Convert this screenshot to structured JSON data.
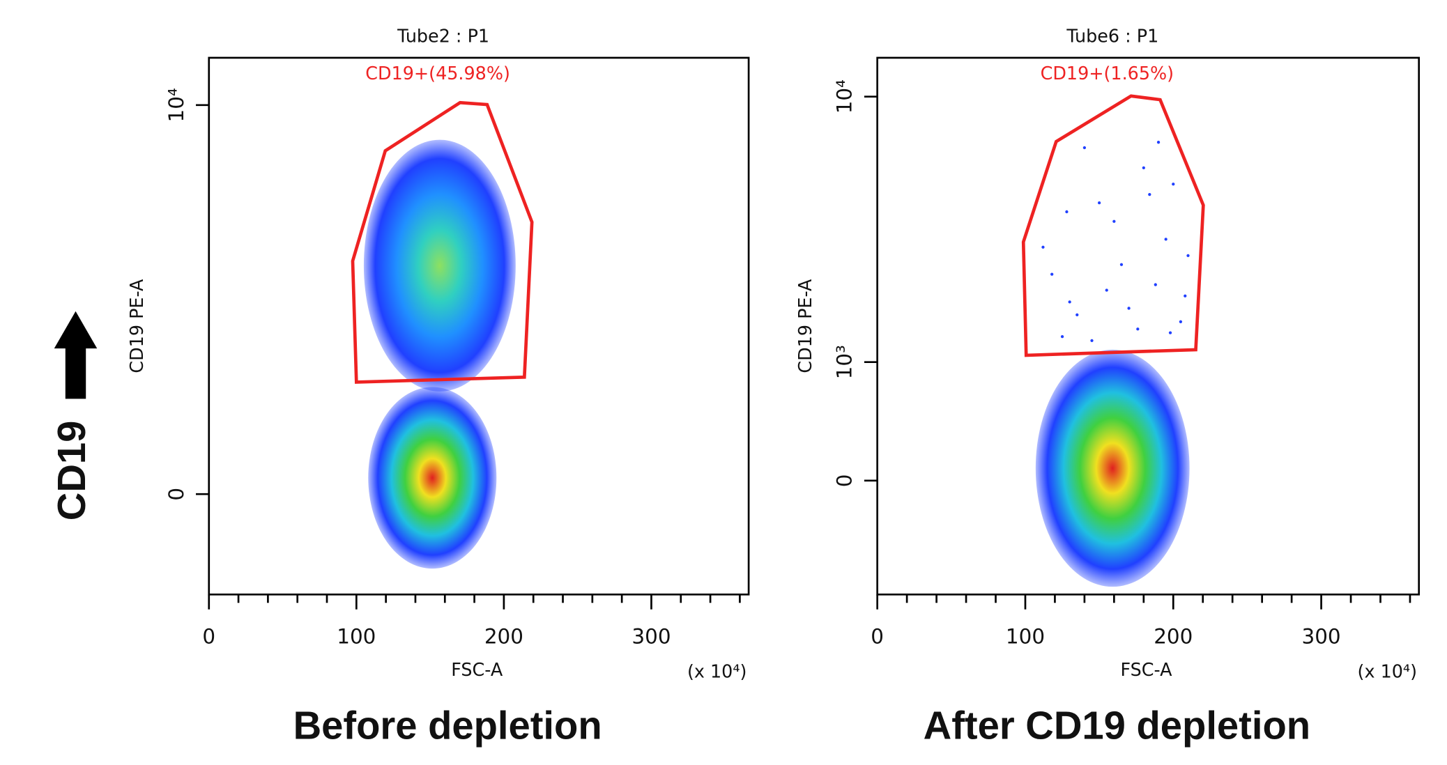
{
  "chart_data": [
    {
      "type": "flow-scatter",
      "title": "Tube2 : P1",
      "xlabel": "FSC-A",
      "xunit": "(x 10⁴)",
      "ylabel": "CD19 PE-A",
      "caption": "Before depletion",
      "xlim": [
        0,
        366
      ],
      "xticks": [
        0,
        100,
        200,
        300
      ],
      "xminor": [
        20,
        40,
        60,
        80,
        120,
        140,
        160,
        180,
        220,
        240,
        260,
        280,
        320,
        340,
        360
      ],
      "ylim": [
        -800,
        14600
      ],
      "yscale": "arcsinh",
      "ycofactor": 900,
      "yticks": [
        0,
        {
          "value": 10000,
          "label": "10⁴"
        }
      ],
      "gate": {
        "label": "CD19+(45.98%)",
        "color": "#ee2222",
        "x": [
          97.5,
          119.6,
          170.3,
          188.6,
          219,
          213.9,
          100
        ],
        "y": [
          2820,
          6930,
          10200,
          10040,
          3890,
          966,
          915
        ]
      },
      "populations": [
        {
          "x_range": [
            105,
            208
          ],
          "y_range": [
            822,
            7570
          ],
          "colors": [
            "#8ee060",
            "#30d0c0",
            "#2090ff",
            "#2040ff"
          ]
        },
        {
          "x_range": [
            108,
            195
          ],
          "y_range": [
            -567,
            866
          ],
          "colors": [
            "#e02020",
            "#f0e020",
            "#40d040",
            "#20c0e0",
            "#2040ff"
          ]
        }
      ],
      "points": {
        "x": [],
        "y": []
      }
    },
    {
      "type": "flow-scatter",
      "title": "Tube6 : P1",
      "xlabel": "FSC-A",
      "xunit": "(x 10⁴)",
      "ylabel": "CD19 PE-A",
      "caption": "After CD19 depletion",
      "xlim": [
        0,
        366
      ],
      "xticks": [
        0,
        100,
        200,
        300
      ],
      "xminor": [
        20,
        40,
        60,
        80,
        120,
        140,
        160,
        180,
        220,
        240,
        260,
        280,
        320,
        340,
        360
      ],
      "ylim": [
        -950,
        13700
      ],
      "yscale": "arcsinh",
      "ycofactor": 900,
      "yticks": [
        0,
        {
          "value": 1000,
          "label": "10³"
        },
        {
          "value": 10000,
          "label": "10⁴"
        }
      ],
      "gate": {
        "label": "CD19+(1.65%)",
        "color": "#ee2222",
        "x": [
          98.7,
          120.9,
          171.5,
          191.1,
          220.3,
          215.2,
          100.6
        ],
        "y": [
          3030,
          6940,
          10050,
          9750,
          4120,
          1140,
          1075
        ]
      },
      "populations": [
        {
          "x_range": [
            107,
            211
          ],
          "y_range": [
            -870,
            1140
          ],
          "colors": [
            "#e02020",
            "#f0e020",
            "#40d040",
            "#20c0e0",
            "#2040ff"
          ]
        }
      ],
      "points": {
        "x": [
          112,
          130,
          150,
          165,
          180,
          195,
          205,
          125,
          140,
          170,
          188,
          200,
          118,
          160,
          176,
          210,
          135,
          190,
          145,
          155,
          128,
          198,
          184,
          208
        ],
        "y": [
          2900,
          1800,
          4200,
          2500,
          5600,
          3100,
          1500,
          1300,
          6600,
          1700,
          2100,
          4900,
          2300,
          3600,
          1400,
          2700,
          1600,
          6900,
          1250,
          2000,
          3900,
          1350,
          4500,
          1900
        ]
      }
    }
  ]
}
